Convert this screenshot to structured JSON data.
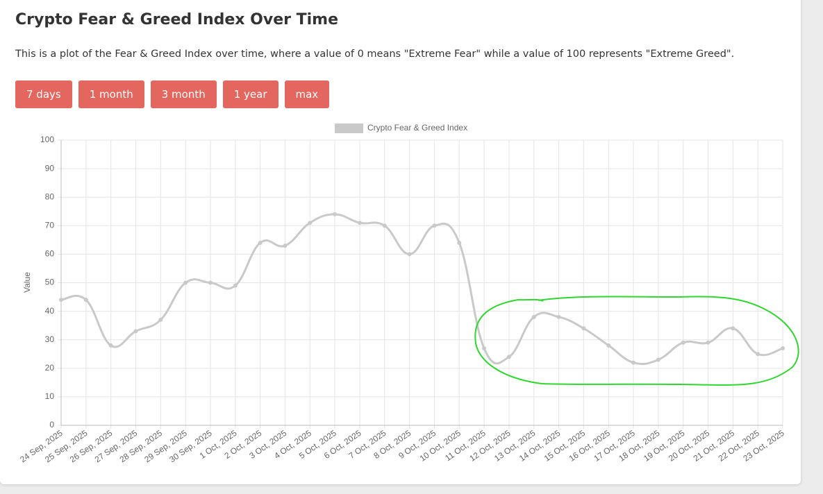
{
  "header": {
    "title": "Crypto Fear & Greed Index Over Time",
    "description": "This is a plot of the Fear & Greed Index over time, where a value of 0 means \"Extreme Fear\" while a value of 100 represents \"Extreme Greed\"."
  },
  "buttons": [
    "7 days",
    "1 month",
    "3 month",
    "1 year",
    "max"
  ],
  "chart_data": {
    "type": "line",
    "y_label": "Value",
    "categories": [
      "24 Sep, 2025",
      "25 Sep, 2025",
      "26 Sep, 2025",
      "27 Sep, 2025",
      "28 Sep, 2025",
      "29 Sep, 2025",
      "30 Sep, 2025",
      "1 Oct, 2025",
      "2 Oct, 2025",
      "3 Oct, 2025",
      "4 Oct, 2025",
      "5 Oct, 2025",
      "6 Oct, 2025",
      "7 Oct, 2025",
      "8 Oct, 2025",
      "9 Oct, 2025",
      "10 Oct, 2025",
      "11 Oct, 2025",
      "12 Oct, 2025",
      "13 Oct, 2025",
      "14 Oct, 2025",
      "15 Oct, 2025",
      "16 Oct, 2025",
      "17 Oct, 2025",
      "18 Oct, 2025",
      "19 Oct, 2025",
      "20 Oct, 2025",
      "21 Oct, 2025",
      "22 Oct, 2025",
      "23 Oct, 2025"
    ],
    "series": [
      {
        "name": "Crypto Fear & Greed Index",
        "color": "#c9c9c9",
        "values": [
          44,
          44,
          28,
          33,
          37,
          50,
          50,
          49,
          64,
          63,
          71,
          74,
          71,
          70,
          60,
          70,
          64,
          27,
          24,
          38,
          38,
          34,
          28,
          22,
          23,
          29,
          29,
          34,
          25,
          27
        ]
      }
    ],
    "ylim": [
      0,
      100
    ],
    "yticks": [
      0,
      10,
      20,
      30,
      40,
      50,
      60,
      70,
      80,
      90,
      100
    ],
    "grid": true
  }
}
